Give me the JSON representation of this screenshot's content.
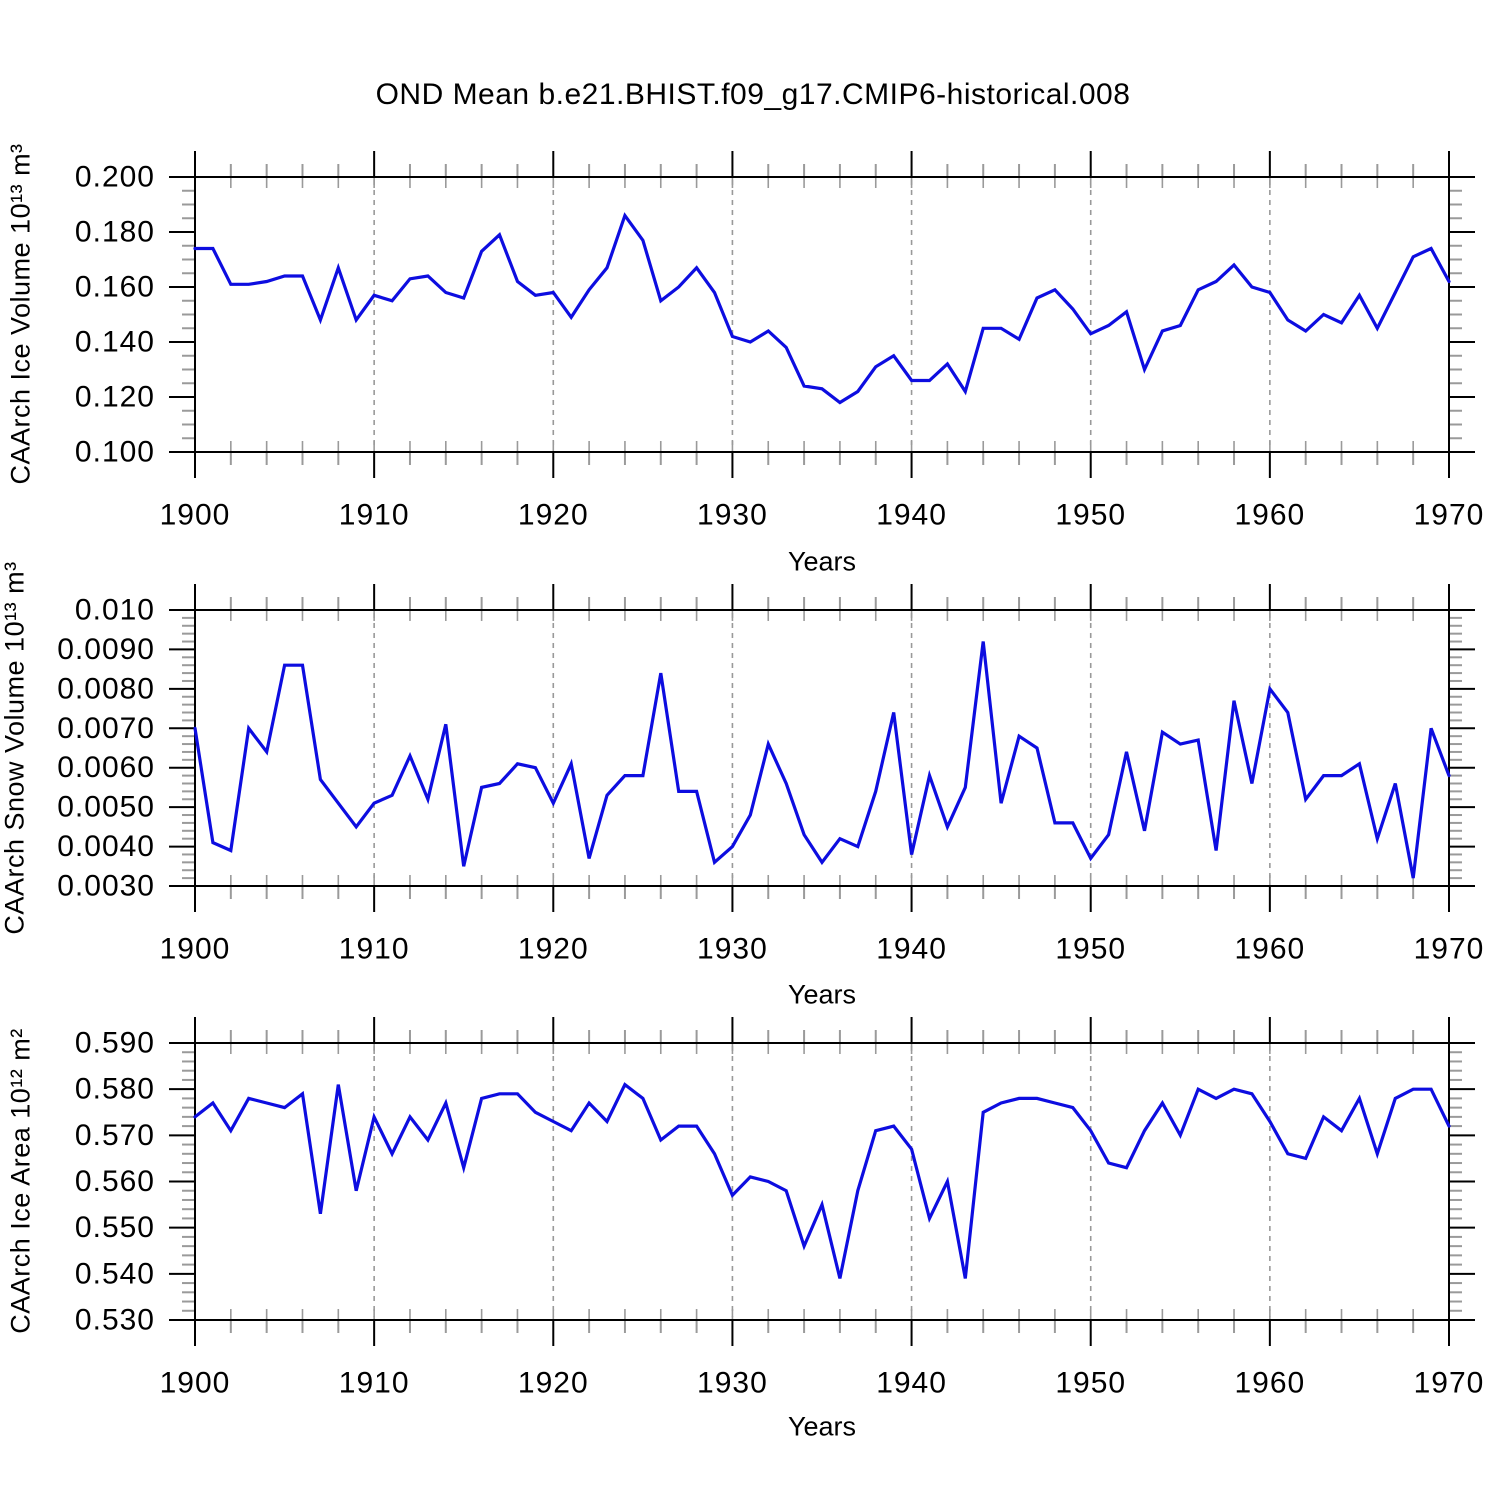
{
  "title": "OND Mean b.e21.BHIST.f09_g17.CMIP6-historical.008",
  "colors": {
    "line": "#0d0de0",
    "axis": "#000000",
    "minor_tick": "#9a9a9a",
    "grid": "#999999",
    "background": "#ffffff",
    "text": "#000000"
  },
  "chart_data": [
    {
      "type": "line",
      "ylabel": "CAArch Ice Volume 10¹³ m³",
      "xlabel": "Years",
      "x_range": [
        1900,
        1970
      ],
      "x_step": 1,
      "ylim": [
        0.1,
        0.2
      ],
      "y_ticks": {
        "labels": [
          "0.200",
          "0.180",
          "0.160",
          "0.140",
          "0.120",
          "0.100"
        ],
        "values": [
          0.2,
          0.18,
          0.16,
          0.14,
          0.12,
          0.1
        ],
        "minor_step": 0.005
      },
      "x_ticks": {
        "labels": [
          "1900",
          "1910",
          "1920",
          "1930",
          "1940",
          "1950",
          "1960",
          "1970"
        ],
        "values": [
          1900,
          1910,
          1920,
          1930,
          1940,
          1950,
          1960,
          1970
        ],
        "minor_step": 2
      },
      "x_grid": [
        1910,
        1920,
        1930,
        1940,
        1950,
        1960
      ],
      "values": [
        0.174,
        0.174,
        0.161,
        0.161,
        0.162,
        0.164,
        0.164,
        0.148,
        0.167,
        0.148,
        0.157,
        0.155,
        0.163,
        0.164,
        0.158,
        0.156,
        0.173,
        0.179,
        0.162,
        0.157,
        0.158,
        0.149,
        0.159,
        0.167,
        0.186,
        0.177,
        0.155,
        0.16,
        0.167,
        0.158,
        0.142,
        0.14,
        0.144,
        0.138,
        0.124,
        0.123,
        0.118,
        0.122,
        0.131,
        0.135,
        0.126,
        0.126,
        0.132,
        0.122,
        0.145,
        0.145,
        0.141,
        0.156,
        0.159,
        0.152,
        0.143,
        0.146,
        0.151,
        0.13,
        0.144,
        0.146,
        0.159,
        0.162,
        0.168,
        0.16,
        0.158,
        0.148,
        0.144,
        0.15,
        0.147,
        0.157,
        0.145,
        0.158,
        0.171,
        0.174,
        0.162
      ]
    },
    {
      "type": "line",
      "ylabel": "CAArch Snow Volume 10¹³ m³",
      "xlabel": "Years",
      "x_range": [
        1900,
        1970
      ],
      "x_step": 1,
      "ylim": [
        0.003,
        0.01
      ],
      "y_ticks": {
        "labels": [
          "0.010",
          "0.0090",
          "0.0080",
          "0.0070",
          "0.0060",
          "0.0050",
          "0.0040",
          "0.0030"
        ],
        "values": [
          0.01,
          0.009,
          0.008,
          0.007,
          0.006,
          0.005,
          0.004,
          0.003
        ],
        "minor_step": 0.0002
      },
      "x_ticks": {
        "labels": [
          "1900",
          "1910",
          "1920",
          "1930",
          "1940",
          "1950",
          "1960",
          "1970"
        ],
        "values": [
          1900,
          1910,
          1920,
          1930,
          1940,
          1950,
          1960,
          1970
        ],
        "minor_step": 2
      },
      "x_grid": [
        1910,
        1920,
        1930,
        1940,
        1950,
        1960
      ],
      "values": [
        0.007,
        0.0041,
        0.0039,
        0.007,
        0.0064,
        0.0086,
        0.0086,
        0.0057,
        0.0051,
        0.0045,
        0.0051,
        0.0053,
        0.0063,
        0.0052,
        0.0071,
        0.0035,
        0.0055,
        0.0056,
        0.0061,
        0.006,
        0.0051,
        0.0061,
        0.0037,
        0.0053,
        0.0058,
        0.0058,
        0.0084,
        0.0054,
        0.0054,
        0.0036,
        0.004,
        0.0048,
        0.0066,
        0.0056,
        0.0043,
        0.0036,
        0.0042,
        0.004,
        0.0054,
        0.0074,
        0.0038,
        0.0058,
        0.0045,
        0.0055,
        0.0092,
        0.0051,
        0.0068,
        0.0065,
        0.0046,
        0.0046,
        0.0037,
        0.0043,
        0.0064,
        0.0044,
        0.0069,
        0.0066,
        0.0067,
        0.0039,
        0.0077,
        0.0056,
        0.008,
        0.0074,
        0.0052,
        0.0058,
        0.0058,
        0.0061,
        0.0042,
        0.0056,
        0.0032,
        0.007,
        0.0058
      ]
    },
    {
      "type": "line",
      "ylabel": "CAArch Ice Area 10¹² m²",
      "xlabel": "Years",
      "x_range": [
        1900,
        1970
      ],
      "x_step": 1,
      "ylim": [
        0.53,
        0.59
      ],
      "y_ticks": {
        "labels": [
          "0.590",
          "0.580",
          "0.570",
          "0.560",
          "0.550",
          "0.540",
          "0.530"
        ],
        "values": [
          0.59,
          0.58,
          0.57,
          0.56,
          0.55,
          0.54,
          0.53
        ],
        "minor_step": 0.002
      },
      "x_ticks": {
        "labels": [
          "1900",
          "1910",
          "1920",
          "1930",
          "1940",
          "1950",
          "1960",
          "1970"
        ],
        "values": [
          1900,
          1910,
          1920,
          1930,
          1940,
          1950,
          1960,
          1970
        ],
        "minor_step": 2
      },
      "x_grid": [
        1910,
        1920,
        1930,
        1940,
        1950,
        1960
      ],
      "values": [
        0.574,
        0.577,
        0.571,
        0.578,
        0.577,
        0.576,
        0.579,
        0.553,
        0.581,
        0.558,
        0.574,
        0.566,
        0.574,
        0.569,
        0.577,
        0.563,
        0.578,
        0.579,
        0.579,
        0.575,
        0.573,
        0.571,
        0.577,
        0.573,
        0.581,
        0.578,
        0.569,
        0.572,
        0.572,
        0.566,
        0.557,
        0.561,
        0.56,
        0.558,
        0.546,
        0.555,
        0.539,
        0.558,
        0.571,
        0.572,
        0.567,
        0.552,
        0.56,
        0.539,
        0.575,
        0.577,
        0.578,
        0.578,
        0.577,
        0.576,
        0.571,
        0.564,
        0.563,
        0.571,
        0.577,
        0.57,
        0.58,
        0.578,
        0.58,
        0.579,
        0.573,
        0.566,
        0.565,
        0.574,
        0.571,
        0.578,
        0.566,
        0.578,
        0.58,
        0.58,
        0.572
      ]
    }
  ]
}
